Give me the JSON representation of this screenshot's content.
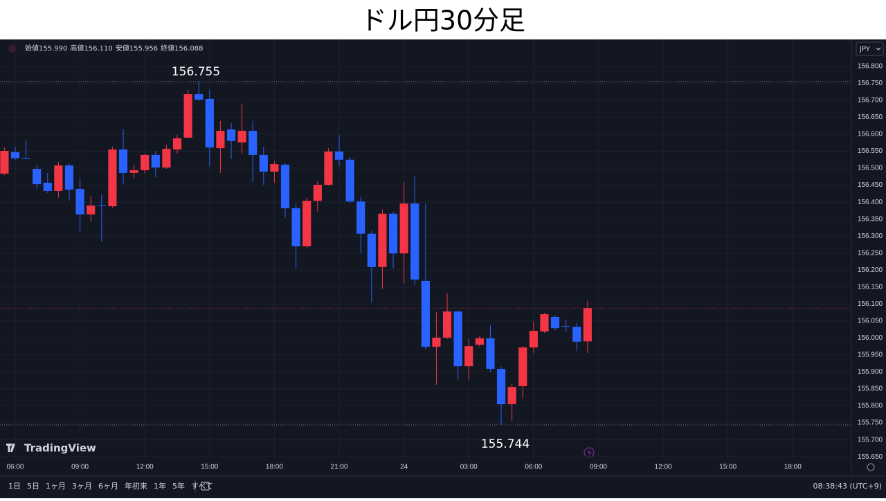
{
  "chart_data": {
    "type": "candlestick",
    "title": "ドル円30分足",
    "up_color": "#f23645",
    "down_color": "#2962ff",
    "grid": true,
    "x": [
      0,
      1,
      2,
      3,
      4,
      5,
      6,
      7,
      8,
      9,
      10,
      11,
      12,
      13,
      14,
      15,
      16,
      17,
      18,
      19,
      20,
      21,
      22,
      23,
      24,
      25,
      26,
      27,
      28,
      29,
      30,
      31,
      32,
      33,
      34,
      35,
      36,
      37,
      38,
      39,
      40,
      41,
      42,
      43,
      44,
      45,
      46,
      47,
      48,
      49,
      50,
      51,
      52,
      53,
      54
    ],
    "open": [
      156.484,
      156.547,
      156.529,
      156.498,
      156.457,
      156.433,
      156.508,
      156.439,
      156.364,
      156.392,
      156.388,
      156.555,
      156.486,
      156.494,
      156.539,
      156.502,
      156.555,
      156.59,
      156.718,
      156.704,
      156.559,
      156.614,
      156.576,
      156.61,
      156.539,
      156.49,
      156.51,
      156.382,
      156.27,
      156.404,
      156.451,
      156.549,
      156.525,
      156.402,
      156.307,
      156.209,
      156.366,
      156.249,
      156.396,
      156.168,
      155.974,
      156.001,
      156.078,
      155.917,
      155.98,
      155.999,
      155.909,
      155.805,
      155.858,
      155.972,
      156.019,
      156.062,
      156.035,
      156.033,
      155.99
    ],
    "high": [
      156.561,
      156.563,
      156.582,
      156.51,
      156.486,
      156.519,
      156.514,
      156.47,
      156.419,
      156.421,
      156.563,
      156.614,
      156.51,
      156.543,
      156.551,
      156.568,
      156.598,
      156.731,
      156.755,
      156.731,
      156.639,
      156.633,
      156.69,
      156.639,
      156.563,
      156.521,
      156.514,
      156.396,
      156.413,
      156.462,
      156.559,
      156.598,
      156.533,
      156.415,
      156.317,
      156.378,
      156.372,
      156.459,
      156.476,
      156.396,
      156.076,
      156.131,
      156.082,
      155.997,
      156.007,
      156.037,
      155.915,
      155.864,
      155.976,
      156.048,
      156.074,
      156.066,
      156.054,
      156.045,
      156.11
    ],
    "low": [
      156.48,
      156.523,
      156.527,
      156.439,
      156.427,
      156.413,
      156.404,
      156.313,
      156.343,
      156.284,
      156.384,
      156.453,
      156.47,
      156.484,
      156.474,
      156.498,
      156.543,
      156.588,
      156.698,
      156.506,
      156.486,
      156.527,
      156.543,
      156.459,
      156.451,
      156.457,
      156.355,
      156.205,
      156.266,
      156.372,
      156.449,
      156.506,
      156.398,
      156.249,
      156.105,
      156.145,
      156.205,
      156.16,
      156.156,
      155.966,
      155.862,
      155.997,
      155.878,
      155.878,
      155.974,
      155.899,
      155.744,
      155.756,
      155.821,
      155.956,
      156.015,
      156.023,
      156.017,
      155.962,
      155.956
    ],
    "close": [
      156.551,
      156.529,
      156.528,
      156.453,
      156.433,
      156.508,
      156.437,
      156.364,
      156.39,
      156.391,
      156.555,
      156.486,
      156.494,
      156.539,
      156.502,
      156.557,
      156.588,
      156.718,
      156.702,
      156.561,
      156.61,
      156.58,
      156.61,
      156.539,
      156.49,
      156.512,
      156.382,
      156.27,
      156.404,
      156.451,
      156.549,
      156.525,
      156.402,
      156.307,
      156.209,
      156.366,
      156.249,
      156.396,
      156.172,
      155.974,
      156.001,
      156.078,
      155.917,
      155.976,
      155.999,
      155.909,
      155.805,
      155.856,
      155.972,
      156.021,
      156.07,
      156.029,
      156.034,
      155.989,
      156.088
    ],
    "xlim": [
      -0.41,
      78.43
    ],
    "xticks": [
      {
        "value": 1,
        "label": "06:00"
      },
      {
        "value": 7,
        "label": "09:00"
      },
      {
        "value": 13,
        "label": "12:00"
      },
      {
        "value": 19,
        "label": "15:00"
      },
      {
        "value": 25,
        "label": "18:00"
      },
      {
        "value": 31,
        "label": "21:00"
      },
      {
        "value": 37,
        "label": "24"
      },
      {
        "value": 43,
        "label": "03:00"
      },
      {
        "value": 49,
        "label": "06:00"
      },
      {
        "value": 55,
        "label": "09:00"
      },
      {
        "value": 61,
        "label": "12:00"
      },
      {
        "value": 67,
        "label": "15:00"
      },
      {
        "value": 73,
        "label": "18:00"
      }
    ],
    "ylim": [
      155.634,
      156.873
    ],
    "yticks": [
      {
        "value": 155.65,
        "label": "155.650"
      },
      {
        "value": 155.7,
        "label": "155.700"
      },
      {
        "value": 155.75,
        "label": "155.750"
      },
      {
        "value": 155.8,
        "label": "155.800"
      },
      {
        "value": 155.85,
        "label": "155.850"
      },
      {
        "value": 155.9,
        "label": "155.900"
      },
      {
        "value": 155.95,
        "label": "155.950"
      },
      {
        "value": 156,
        "label": "156.000"
      },
      {
        "value": 156.05,
        "label": "156.050"
      },
      {
        "value": 156.1,
        "label": "156.100"
      },
      {
        "value": 156.15,
        "label": "156.150"
      },
      {
        "value": 156.2,
        "label": "156.200"
      },
      {
        "value": 156.25,
        "label": "156.250"
      },
      {
        "value": 156.3,
        "label": "156.300"
      },
      {
        "value": 156.35,
        "label": "156.350"
      },
      {
        "value": 156.4,
        "label": "156.400"
      },
      {
        "value": 156.45,
        "label": "156.450"
      },
      {
        "value": 156.5,
        "label": "156.500"
      },
      {
        "value": 156.55,
        "label": "156.550"
      },
      {
        "value": 156.6,
        "label": "156.600"
      },
      {
        "value": 156.65,
        "label": "156.650"
      },
      {
        "value": 156.7,
        "label": "156.700"
      },
      {
        "value": 156.75,
        "label": "156.750"
      },
      {
        "value": 156.8,
        "label": "156.800"
      }
    ],
    "annotations": [
      {
        "value": 156.755,
        "label": "156.755"
      },
      {
        "value": 155.744,
        "label": "155.744"
      }
    ]
  },
  "ui": {
    "ohlc": [
      [
        "始値",
        "155.990"
      ],
      [
        "高値",
        "156.110"
      ],
      [
        "安値",
        "155.956"
      ],
      [
        "終値",
        "156.088"
      ]
    ],
    "currency": "JPY",
    "logo": "TradingView",
    "ranges": [
      "1日",
      "5日",
      "1ヶ月",
      "3ヶ月",
      "6ヶ月",
      "年初来",
      "1年",
      "5年",
      "すべて"
    ],
    "clock": "08:38:43 (UTC+9)"
  }
}
